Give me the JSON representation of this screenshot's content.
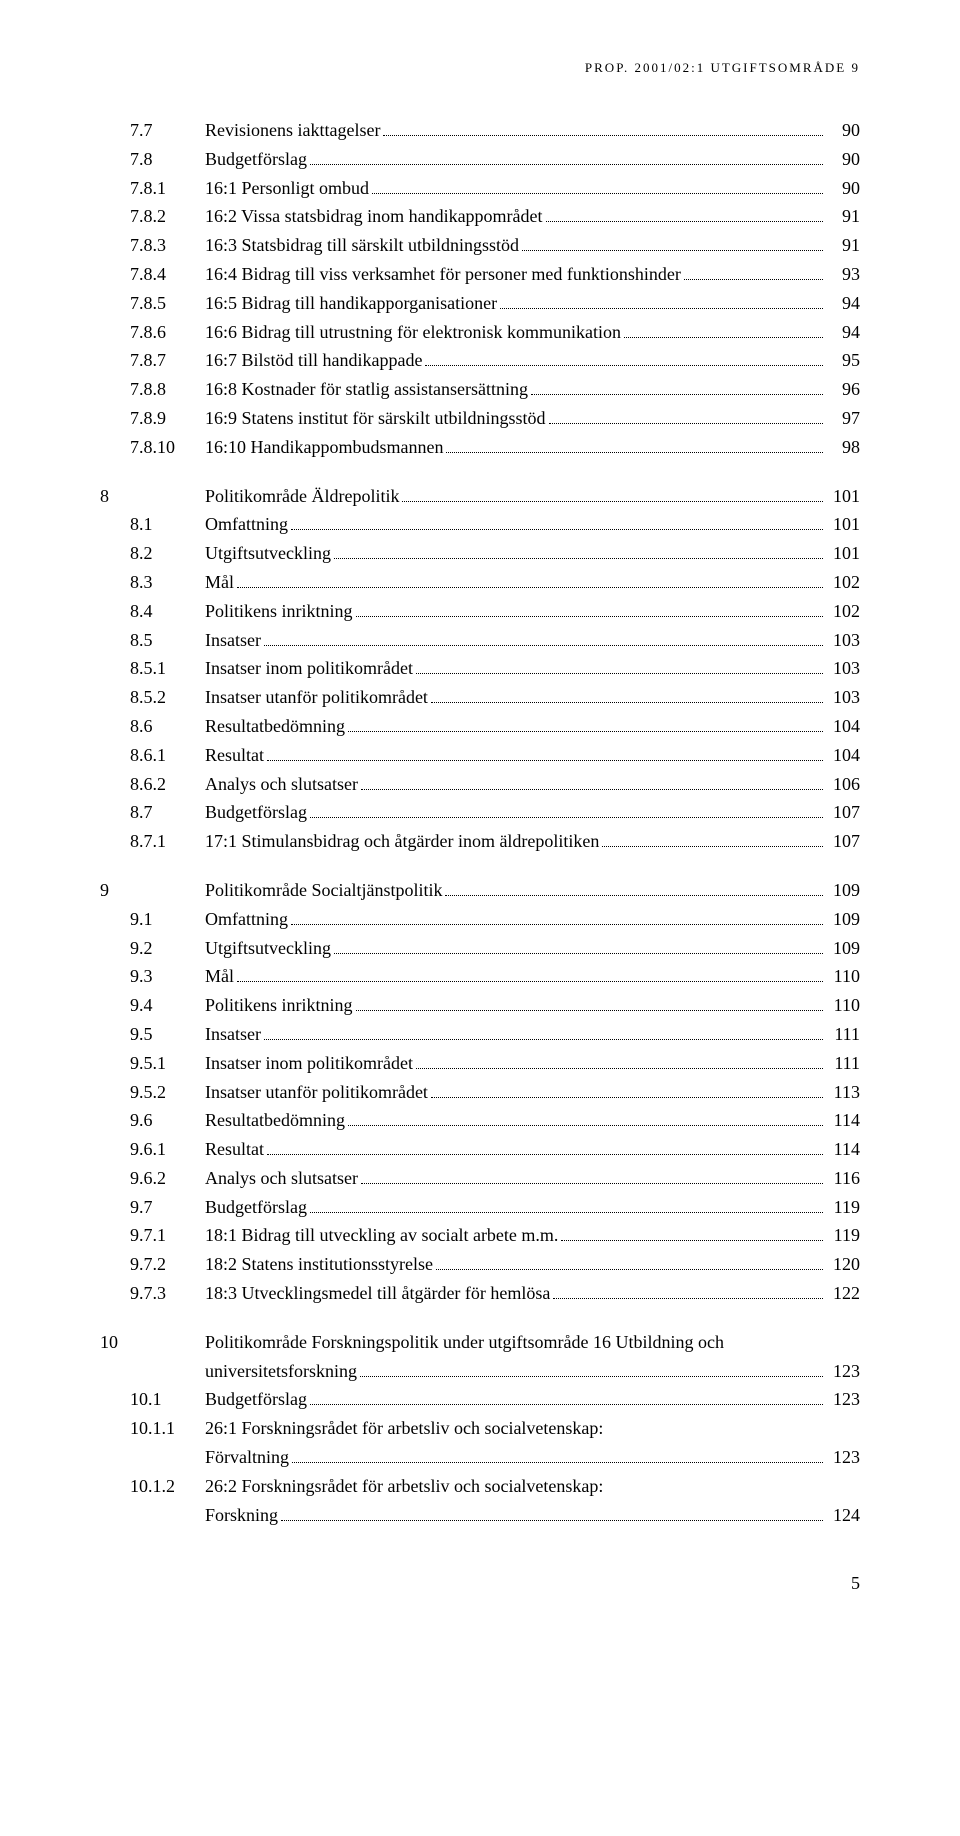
{
  "running_header": "PROP. 2001/02:1 UTGIFTSOMRÅDE 9",
  "page_number": "5",
  "toc_groups": [
    {
      "chapter": "",
      "rows": [
        {
          "num": "7.7",
          "title": "Revisionens iakttagelser",
          "page": "90"
        },
        {
          "num": "7.8",
          "title": "Budgetförslag",
          "page": "90"
        },
        {
          "num": "7.8.1",
          "title": "16:1 Personligt ombud",
          "page": "90"
        },
        {
          "num": "7.8.2",
          "title": "16:2 Vissa statsbidrag inom handikappområdet",
          "page": "91"
        },
        {
          "num": "7.8.3",
          "title": "16:3 Statsbidrag till särskilt utbildningsstöd",
          "page": "91"
        },
        {
          "num": "7.8.4",
          "title": "16:4 Bidrag till viss verksamhet för personer med funktionshinder",
          "page": "93"
        },
        {
          "num": "7.8.5",
          "title": "16:5 Bidrag till handikapporganisationer",
          "page": "94"
        },
        {
          "num": "7.8.6",
          "title": "16:6 Bidrag till utrustning för elektronisk kommunikation",
          "page": "94"
        },
        {
          "num": "7.8.7",
          "title": "16:7 Bilstöd till handikappade",
          "page": "95"
        },
        {
          "num": "7.8.8",
          "title": "16:8 Kostnader för statlig assistansersättning",
          "page": "96"
        },
        {
          "num": "7.8.9",
          "title": "16:9 Statens institut för särskilt utbildningsstöd",
          "page": "97"
        },
        {
          "num": "7.8.10",
          "title": "16:10 Handikappombudsmannen",
          "page": "98"
        }
      ]
    },
    {
      "chapter": "8",
      "rows": [
        {
          "num": "",
          "title": "Politikområde Äldrepolitik",
          "page": "101"
        },
        {
          "num": "8.1",
          "title": "Omfattning",
          "page": "101"
        },
        {
          "num": "8.2",
          "title": "Utgiftsutveckling",
          "page": "101"
        },
        {
          "num": "8.3",
          "title": "Mål",
          "page": "102"
        },
        {
          "num": "8.4",
          "title": "Politikens inriktning",
          "page": "102"
        },
        {
          "num": "8.5",
          "title": "Insatser",
          "page": "103"
        },
        {
          "num": "8.5.1",
          "title": "Insatser inom politikområdet",
          "page": "103"
        },
        {
          "num": "8.5.2",
          "title": "Insatser utanför politikområdet",
          "page": "103"
        },
        {
          "num": "8.6",
          "title": "Resultatbedömning",
          "page": "104"
        },
        {
          "num": "8.6.1",
          "title": "Resultat",
          "page": "104"
        },
        {
          "num": "8.6.2",
          "title": "Analys och slutsatser",
          "page": "106"
        },
        {
          "num": "8.7",
          "title": "Budgetförslag",
          "page": "107"
        },
        {
          "num": "8.7.1",
          "title": "17:1 Stimulansbidrag och åtgärder inom äldrepolitiken",
          "page": "107"
        }
      ]
    },
    {
      "chapter": "9",
      "rows": [
        {
          "num": "",
          "title": "Politikområde Socialtjänstpolitik",
          "page": "109"
        },
        {
          "num": "9.1",
          "title": "Omfattning",
          "page": "109"
        },
        {
          "num": "9.2",
          "title": "Utgiftsutveckling",
          "page": "109"
        },
        {
          "num": "9.3",
          "title": "Mål",
          "page": "110"
        },
        {
          "num": "9.4",
          "title": "Politikens inriktning",
          "page": "110"
        },
        {
          "num": "9.5",
          "title": "Insatser",
          "page": "111"
        },
        {
          "num": "9.5.1",
          "title": "Insatser inom politikområdet",
          "page": "111"
        },
        {
          "num": "9.5.2",
          "title": "Insatser utanför politikområdet",
          "page": "113"
        },
        {
          "num": "9.6",
          "title": "Resultatbedömning",
          "page": "114"
        },
        {
          "num": "9.6.1",
          "title": "Resultat",
          "page": "114"
        },
        {
          "num": "9.6.2",
          "title": "Analys och slutsatser",
          "page": "116"
        },
        {
          "num": "9.7",
          "title": "Budgetförslag",
          "page": "119"
        },
        {
          "num": "9.7.1",
          "title": "18:1 Bidrag till utveckling av socialt arbete m.m.",
          "page": "119"
        },
        {
          "num": "9.7.2",
          "title": "18:2 Statens institutionsstyrelse",
          "page": "120"
        },
        {
          "num": "9.7.3",
          "title": "18:3 Utvecklingsmedel till åtgärder för hemlösa",
          "page": "122"
        }
      ]
    },
    {
      "chapter": "10",
      "rows": [
        {
          "num": "",
          "title": "Politikområde Forskningspolitik under utgiftsområde 16 Utbildning och\nuniversitetsforskning",
          "page": "123"
        },
        {
          "num": "10.1",
          "title": "Budgetförslag",
          "page": "123"
        },
        {
          "num": "10.1.1",
          "title": "26:1 Forskningsrådet för arbetsliv och socialvetenskap:\nFörvaltning",
          "page": "123"
        },
        {
          "num": "10.1.2",
          "title": "26:2 Forskningsrådet för arbetsliv och socialvetenskap:\nForskning",
          "page": "124"
        }
      ]
    }
  ]
}
